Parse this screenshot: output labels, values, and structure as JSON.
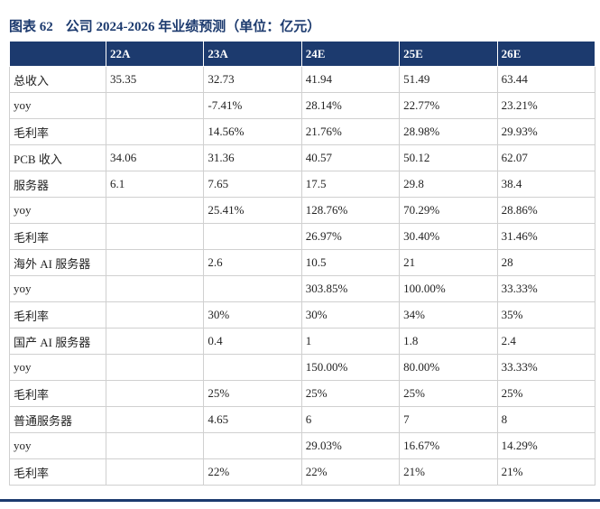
{
  "header": {
    "label": "图表 62",
    "title": "公司 2024-2026 年业绩预测（单位：亿元）"
  },
  "table": {
    "columns": [
      "22A",
      "23A",
      "24E",
      "25E",
      "26E"
    ],
    "rows": [
      [
        "总收入",
        "35.35",
        "32.73",
        "41.94",
        "51.49",
        "63.44"
      ],
      [
        "yoy",
        null,
        "-7.41%",
        "28.14%",
        "22.77%",
        "23.21%"
      ],
      [
        "毛利率",
        null,
        "14.56%",
        "21.76%",
        "28.98%",
        "29.93%"
      ],
      [
        "PCB 收入",
        "34.06",
        "31.36",
        "40.57",
        "50.12",
        "62.07"
      ],
      [
        "服务器",
        "6.1",
        "7.65",
        "17.5",
        "29.8",
        "38.4"
      ],
      [
        "yoy",
        null,
        "25.41%",
        "128.76%",
        "70.29%",
        "28.86%"
      ],
      [
        "毛利率",
        null,
        null,
        "26.97%",
        "30.40%",
        "31.46%"
      ],
      [
        "海外 AI 服务器",
        null,
        "2.6",
        "10.5",
        "21",
        "28"
      ],
      [
        "yoy",
        null,
        null,
        "303.85%",
        "100.00%",
        "33.33%"
      ],
      [
        "毛利率",
        null,
        "30%",
        "30%",
        "34%",
        "35%"
      ],
      [
        "国产 AI 服务器",
        null,
        "0.4",
        "1",
        "1.8",
        "2.4"
      ],
      [
        "yoy",
        null,
        null,
        "150.00%",
        "80.00%",
        "33.33%"
      ],
      [
        "毛利率",
        null,
        "25%",
        "25%",
        "25%",
        "25%"
      ],
      [
        "普通服务器",
        null,
        "4.65",
        "6",
        "7",
        "8"
      ],
      [
        "yoy",
        null,
        null,
        "29.03%",
        "16.67%",
        "14.29%"
      ],
      [
        "毛利率",
        null,
        "22%",
        "22%",
        "21%",
        "21%"
      ]
    ]
  }
}
